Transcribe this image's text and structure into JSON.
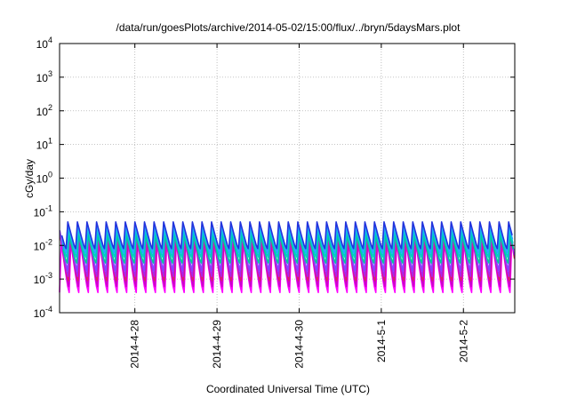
{
  "chart_data": {
    "type": "line",
    "title": "/data/run/goesPlots/archive/2014-05-02/15:00/flux/../bryn/5daysMars.plot",
    "xlabel": "Coordinated Universal Time (UTC)",
    "ylabel": "cGy/day",
    "x_range": [
      "2014-04-27T02:00",
      "2014-05-02T15:00"
    ],
    "x_ticks": [
      {
        "label": "2014-4-28",
        "value": "2014-04-28"
      },
      {
        "label": "2014-4-29",
        "value": "2014-04-29"
      },
      {
        "label": "2014-4-30",
        "value": "2014-04-30"
      },
      {
        "label": "2014-5-1",
        "value": "2014-05-01"
      },
      {
        "label": "2014-5-2",
        "value": "2014-05-02"
      }
    ],
    "y_scale": "log",
    "ylim": [
      0.0001,
      10000
    ],
    "y_ticks": [
      {
        "base": "10",
        "exp": "-4"
      },
      {
        "base": "10",
        "exp": "-3"
      },
      {
        "base": "10",
        "exp": "-2"
      },
      {
        "base": "10",
        "exp": "-1"
      },
      {
        "base": "10",
        "exp": "0"
      },
      {
        "base": "10",
        "exp": "1"
      },
      {
        "base": "10",
        "exp": "2"
      },
      {
        "base": "10",
        "exp": "3"
      },
      {
        "base": "10",
        "exp": "4"
      }
    ],
    "grid": true,
    "legend": "none",
    "pattern": {
      "period_hours": 2.8,
      "start": "2014-04-27T02:00",
      "end": "2014-05-02T15:00"
    },
    "series": [
      {
        "color": "#ff00ff",
        "peak": 0.012,
        "trough": 0.0004
      },
      {
        "color": "#cc00cc",
        "peak": 0.015,
        "trough": 0.0006
      },
      {
        "color": "#dd2266",
        "peak": 0.018,
        "trough": 0.0009
      },
      {
        "color": "#aa22ee",
        "peak": 0.022,
        "trough": 0.0012
      },
      {
        "color": "#8844ff",
        "peak": 0.028,
        "trough": 0.0018
      },
      {
        "color": "#00cc99",
        "peak": 0.02,
        "trough": 0.003
      },
      {
        "color": "#00cccc",
        "peak": 0.03,
        "trough": 0.0045
      },
      {
        "color": "#22aaff",
        "peak": 0.038,
        "trough": 0.006
      },
      {
        "color": "#2233dd",
        "peak": 0.05,
        "trough": 0.008
      }
    ]
  }
}
